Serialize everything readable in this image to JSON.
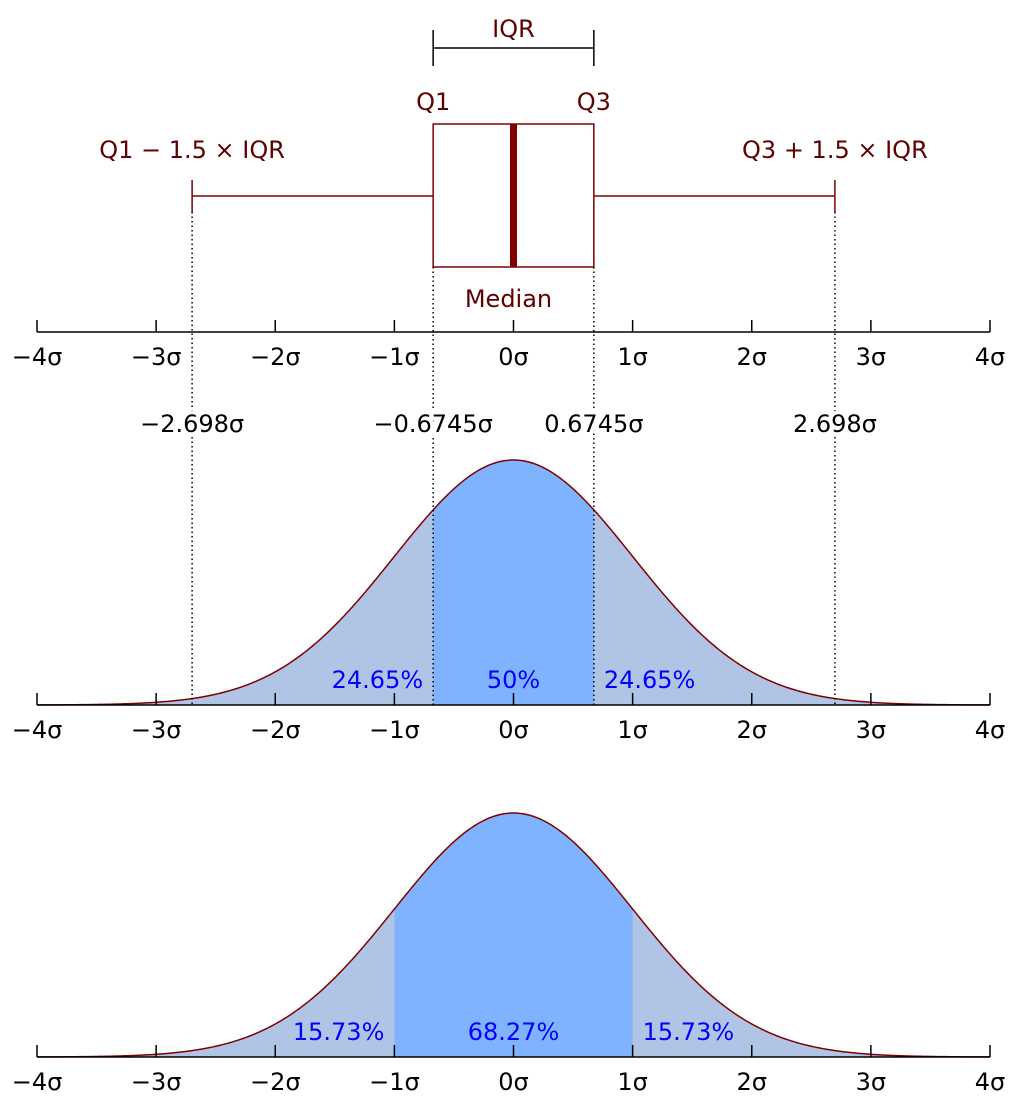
{
  "chart_data": [
    {
      "type": "box",
      "q1": -0.6745,
      "median": 0,
      "q3": 0.6745,
      "whisker_low": -2.698,
      "whisker_high": 2.698,
      "iqr_label": "IQR",
      "q1_label": "Q1",
      "q3_label": "Q3",
      "whisker_low_label": "Q1 − 1.5 × IQR",
      "whisker_high_label": "Q3 + 1.5 × IQR",
      "median_label": "Median",
      "color": "#800000",
      "text_color": "#600000",
      "annotations": [
        {
          "value": -2.698,
          "label": "−2.698σ"
        },
        {
          "value": -0.6745,
          "label": "−0.6745σ"
        },
        {
          "value": 0.6745,
          "label": "0.6745σ"
        },
        {
          "value": 2.698,
          "label": "2.698σ"
        }
      ],
      "xlim": [
        -4,
        4
      ],
      "xticks": [
        {
          "value": -4,
          "label": "−4σ"
        },
        {
          "value": -3,
          "label": "−3σ"
        },
        {
          "value": -2,
          "label": "−2σ"
        },
        {
          "value": -1,
          "label": "−1σ"
        },
        {
          "value": 0,
          "label": "0σ"
        },
        {
          "value": 1,
          "label": "1σ"
        },
        {
          "value": 2,
          "label": "2σ"
        },
        {
          "value": 3,
          "label": "3σ"
        },
        {
          "value": 4,
          "label": "4σ"
        }
      ]
    },
    {
      "type": "density",
      "edges": [
        -2.698,
        -0.6745,
        0.6745,
        2.698
      ],
      "values": [
        24.65,
        50,
        24.65
      ],
      "value_labels": [
        "24.65%",
        "50%",
        "24.65%"
      ],
      "colors": [
        "#b0c4e6",
        "#80b3ff",
        "#b0c4e6"
      ],
      "fill_color": "#b0c4e6",
      "line_color": "#800000",
      "label_color": "#0000ff",
      "xlim": [
        -4,
        4
      ],
      "xticks": [
        {
          "value": -4,
          "label": "−4σ"
        },
        {
          "value": -3,
          "label": "−3σ"
        },
        {
          "value": -2,
          "label": "−2σ"
        },
        {
          "value": -1,
          "label": "−1σ"
        },
        {
          "value": 0,
          "label": "0σ"
        },
        {
          "value": 1,
          "label": "1σ"
        },
        {
          "value": 2,
          "label": "2σ"
        },
        {
          "value": 3,
          "label": "3σ"
        },
        {
          "value": 4,
          "label": "4σ"
        }
      ]
    },
    {
      "type": "density",
      "edges": [
        -4,
        -1,
        1,
        4
      ],
      "values": [
        15.73,
        68.27,
        15.73
      ],
      "value_labels": [
        "15.73%",
        "68.27%",
        "15.73%"
      ],
      "colors": [
        "#b0c4e6",
        "#80b3ff",
        "#b0c4e6"
      ],
      "fill_color": "#b0c4e6",
      "line_color": "#800000",
      "label_color": "#0000ff",
      "xlim": [
        -4,
        4
      ],
      "xticks": [
        {
          "value": -4,
          "label": "−4σ"
        },
        {
          "value": -3,
          "label": "−3σ"
        },
        {
          "value": -2,
          "label": "−2σ"
        },
        {
          "value": -1,
          "label": "−1σ"
        },
        {
          "value": 0,
          "label": "0σ"
        },
        {
          "value": 1,
          "label": "1σ"
        },
        {
          "value": 2,
          "label": "2σ"
        },
        {
          "value": 3,
          "label": "3σ"
        },
        {
          "value": 4,
          "label": "4σ"
        }
      ]
    }
  ]
}
